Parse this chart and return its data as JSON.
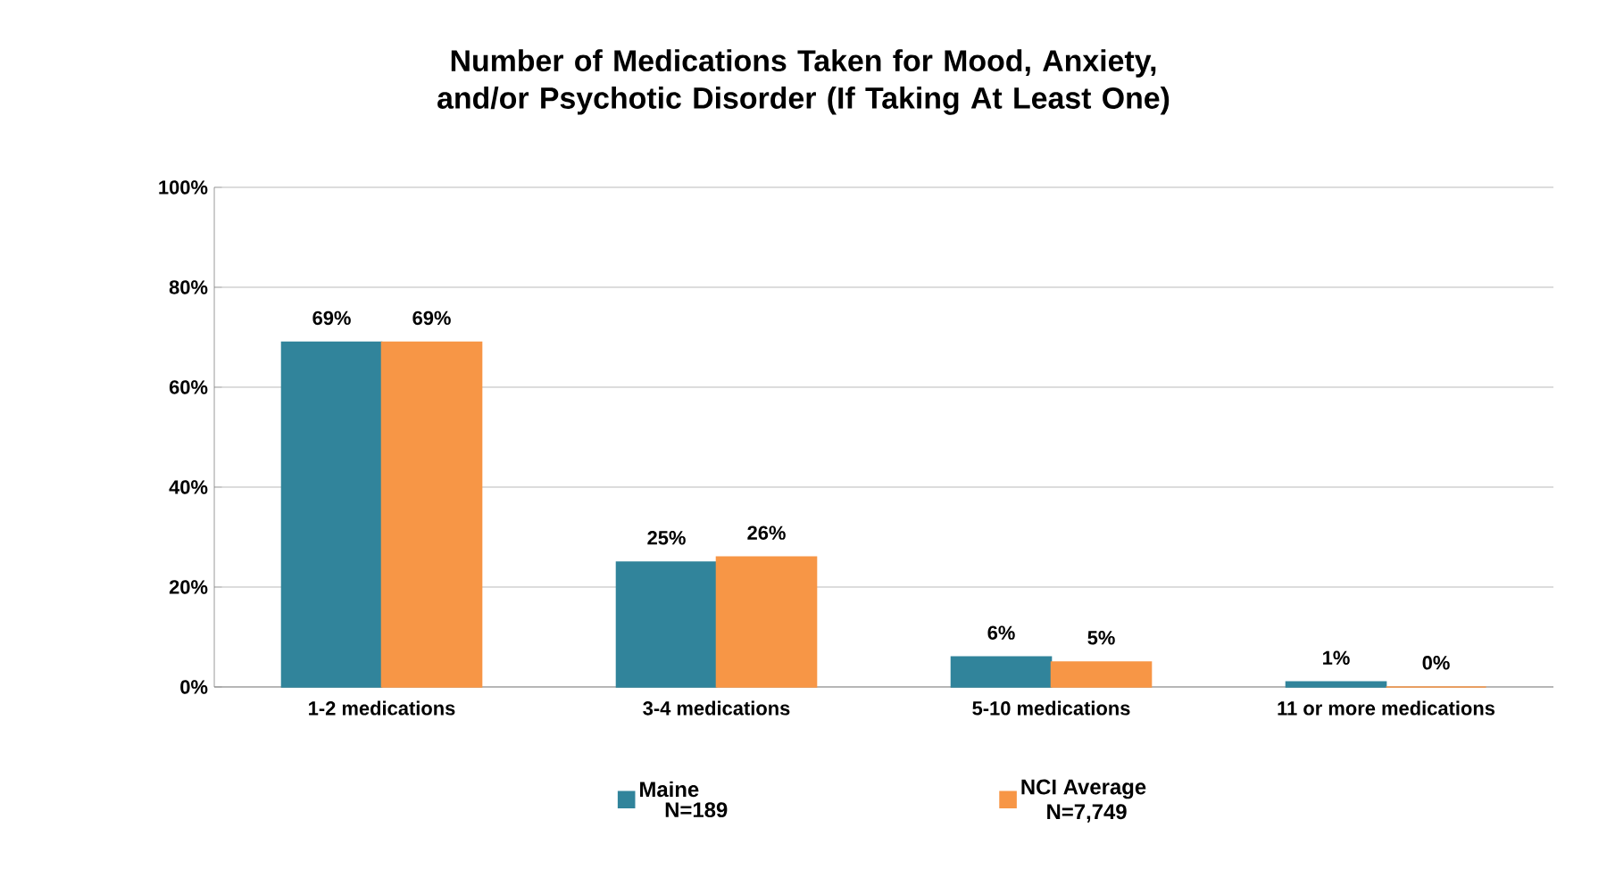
{
  "chart_data": {
    "type": "bar",
    "title": "Number of Medications Taken for Mood, Anxiety, and/or Psychotic Disorder (If Taking At Least One)",
    "categories": [
      "1-2 medications",
      "3-4 medications",
      "5-10 medications",
      "11 or more medications"
    ],
    "series": [
      {
        "name": "Maine",
        "color": "#31849b",
        "values": [
          69,
          25,
          6,
          1
        ],
        "value_labels": [
          "69%",
          "25%",
          "6%",
          "1%"
        ]
      },
      {
        "name": "NCI Average",
        "color": "#f79646",
        "values": [
          69,
          26,
          5,
          0
        ],
        "value_labels": [
          "69%",
          "26%",
          "5%",
          "0%"
        ]
      }
    ],
    "annotations": [
      "N=189",
      "N=7,749"
    ],
    "ylim": [
      0,
      100
    ],
    "yticks": [
      {
        "value": 0,
        "label": "0%"
      },
      {
        "value": 20,
        "label": "20%"
      },
      {
        "value": 40,
        "label": "40%"
      },
      {
        "value": 60,
        "label": "60%"
      },
      {
        "value": 80,
        "label": "80%"
      },
      {
        "value": 100,
        "label": "100%"
      }
    ],
    "grid": "y",
    "legend": "bottom"
  }
}
